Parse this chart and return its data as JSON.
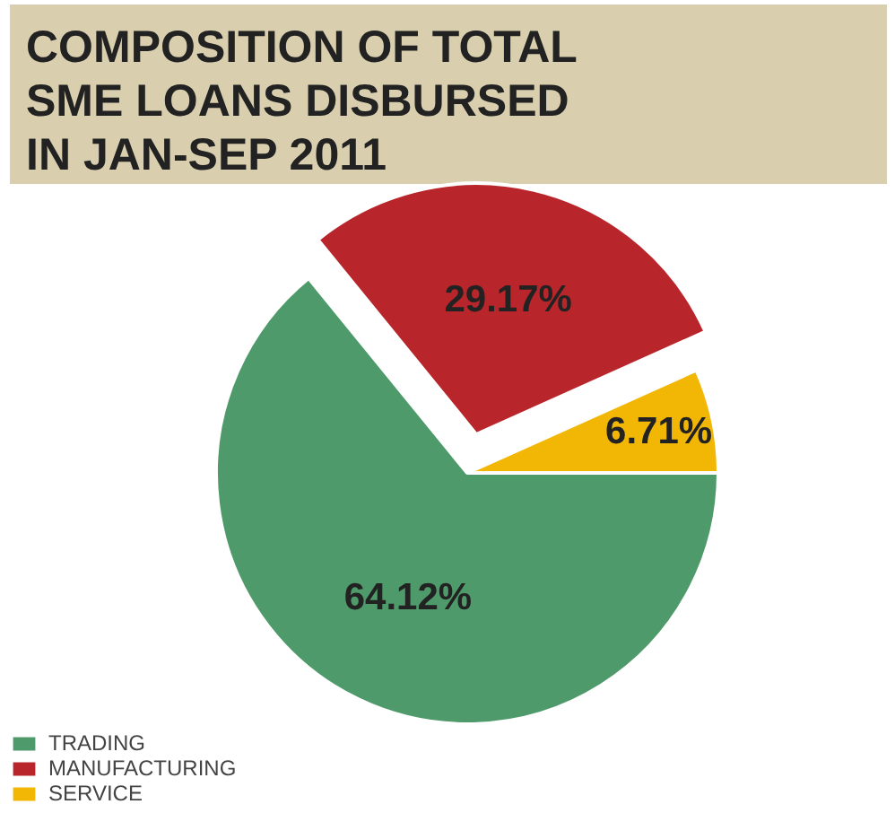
{
  "chart_data": {
    "type": "pie",
    "title": "COMPOSITION OF TOTAL\nSME LOANS DISBURSED\nIN JAN-SEP 2011",
    "categories": [
      "TRADING",
      "MANUFACTURING",
      "SERVICE"
    ],
    "values": [
      64.12,
      29.17,
      6.71
    ],
    "colors": [
      "#4f9a6a",
      "#b8262c",
      "#f2b705"
    ],
    "value_labels": [
      "64.12%",
      "29.17%",
      "6.71%"
    ],
    "legend": "bottom left"
  }
}
